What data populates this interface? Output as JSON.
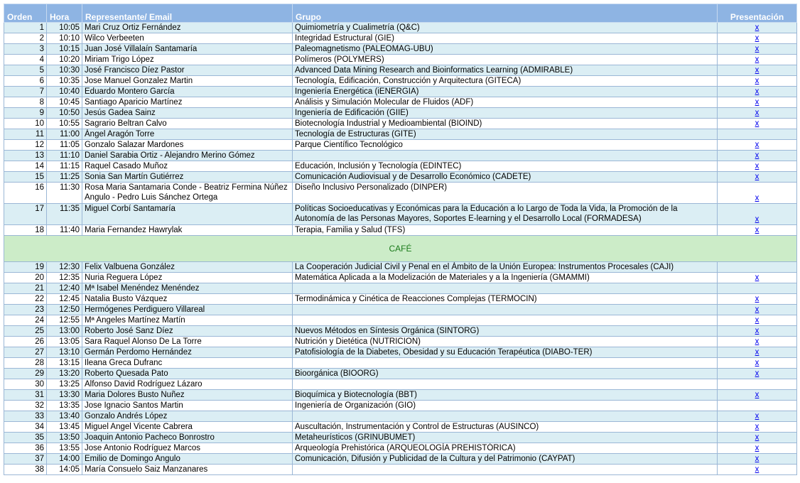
{
  "headers": {
    "orden": "Orden",
    "hora": "Hora",
    "representante": "Representante/ Email",
    "grupo": "Grupo",
    "presentacion": "Presentación"
  },
  "break_label": "CAFÉ",
  "link_text": "x",
  "rows_before": [
    {
      "n": "1",
      "h": "10:05",
      "r": "Mari Cruz Ortiz Fernández",
      "g": "Quimiometría y Cualimetría (Q&C)",
      "p": true
    },
    {
      "n": "2",
      "h": "10:10",
      "r": "Wilco Verbeeten",
      "g": "Integridad Estructural (GIE)",
      "p": true
    },
    {
      "n": "3",
      "h": "10:15",
      "r": "Juan José Villalaín Santamaría",
      "g": "Paleomagnetismo (PALEOMAG-UBU)",
      "p": true
    },
    {
      "n": "4",
      "h": "10:20",
      "r": "Miriam Trigo López",
      "g": "Polímeros (POLYMERS)",
      "p": true
    },
    {
      "n": "5",
      "h": "10:30",
      "r": "José Francisco Díez Pastor",
      "g": "Advanced Data Mining Research and Bioinformatics Learning (ADMIRABLE)",
      "p": true
    },
    {
      "n": "6",
      "h": "10:35",
      "r": "Jose Manuel Gonzalez Martin",
      "g": "Tecnología, Edificación, Construcción y Arquitectura (GITECA)",
      "p": true
    },
    {
      "n": "7",
      "h": "10:40",
      "r": "Eduardo Montero García",
      "g": "Ingeniería Energética (iENERGIA)",
      "p": true
    },
    {
      "n": "8",
      "h": "10:45",
      "r": "Santiago Aparicio Martínez",
      "g": "Análisis y Simulación Molecular de Fluidos (ADF)",
      "p": true
    },
    {
      "n": "9",
      "h": "10:50",
      "r": "Jesús Gadea Sainz",
      "g": "Ingeniería de Edificación (GIIE)",
      "p": true
    },
    {
      "n": "10",
      "h": "10:55",
      "r": "Sagrario Beltran Calvo",
      "g": "Biotecnología Industrial y Medioambiental (BIOIND)",
      "p": true
    },
    {
      "n": "11",
      "h": "11:00",
      "r": "Ángel Aragón Torre",
      "g": "Tecnología de Estructuras (GITE)",
      "p": false
    },
    {
      "n": "12",
      "h": "11:05",
      "r": "Gonzalo Salazar Mardones",
      "g": "Parque Científico Tecnológico",
      "p": true
    },
    {
      "n": "13",
      "h": "11:10",
      "r": "Daniel Sarabia Ortiz - Alejandro Merino Gómez",
      "g": "",
      "p": true
    },
    {
      "n": "14",
      "h": "11:15",
      "r": "Raquel Casado Muñoz",
      "g": "Educación, Inclusión y Tecnología (EDINTEC)",
      "p": true
    },
    {
      "n": "15",
      "h": "11:25",
      "r": "Sonia San Martín Gutiérrez",
      "g": "Comunicación Audiovisual y de Desarrollo Económico (CADETE)",
      "p": true
    },
    {
      "n": "16",
      "h": "11:30",
      "r": "Rosa Maria Santamaria Conde - Beatriz Fermina Núñez Angulo - Pedro Luis Sánchez Ortega",
      "g": "Diseño Inclusivo Personalizado (DINPER)",
      "p": true,
      "tall": true
    },
    {
      "n": "17",
      "h": "11:35",
      "r": "Miguel Corbí Santamaría",
      "g": "Políticas Socioeducativas y Económicas para la Educación a lo Largo de Toda la Vida, la Promoción de la Autonomía de las Personas Mayores, Soportes E-learning y el Desarrollo Local (FORMADESA)",
      "p": true,
      "tall": true
    },
    {
      "n": "18",
      "h": "11:40",
      "r": "Maria Fernandez Hawrylak",
      "g": "Terapia, Familia y Salud (TFS)",
      "p": true
    }
  ],
  "rows_after": [
    {
      "n": "19",
      "h": "12:30",
      "r": "Felix Valbuena González",
      "g": "La Cooperación Judicial Civil y Penal en el Ámbito de la Unión Europea: Instrumentos Procesales (CAJI)",
      "p": false
    },
    {
      "n": "20",
      "h": "12:35",
      "r": "Nuria Reguera López",
      "g": "Matemática Aplicada a la Modelización de Materiales y a la Ingeniería (GMAMMI)",
      "p": true
    },
    {
      "n": "21",
      "h": "12:40",
      "r": "Mª Isabel Menéndez Menéndez",
      "g": "",
      "p": false
    },
    {
      "n": "22",
      "h": "12:45",
      "r": "Natalia Busto Vázquez",
      "g": "Termodinámica y Cinética de Reacciones Complejas (TERMOCIN)",
      "p": true
    },
    {
      "n": "23",
      "h": "12:50",
      "r": "Hermógenes Perdiguero Villareal",
      "g": "",
      "p": true
    },
    {
      "n": "24",
      "h": "12:55",
      "r": "Mª Angeles Martínez Martín",
      "g": "",
      "p": true
    },
    {
      "n": "25",
      "h": "13:00",
      "r": "Roberto José Sanz Díez",
      "g": "Nuevos Métodos en Síntesis Orgánica (SINTORG)",
      "p": true
    },
    {
      "n": "26",
      "h": "13:05",
      "r": "Sara Raquel Alonso De La Torre",
      "g": "Nutrición y Dietética (NUTRICION)",
      "p": true
    },
    {
      "n": "27",
      "h": "13:10",
      "r": "Germán Perdomo Hernández",
      "g": "Patofisiología de la Diabetes, Obesidad y su Educación Terapéutica (DIABO-TER)",
      "p": true
    },
    {
      "n": "28",
      "h": "13:15",
      "r": "Ileana Greca Dufranc",
      "g": "",
      "p": true
    },
    {
      "n": "29",
      "h": "13:20",
      "r": "Roberto Quesada Pato",
      "g": "Bioorgánica (BIOORG)",
      "p": true
    },
    {
      "n": "30",
      "h": "13:25",
      "r": "Alfonso David Rodríguez Lázaro",
      "g": "",
      "p": false
    },
    {
      "n": "31",
      "h": "13:30",
      "r": "Maria Dolores Busto Nuñez",
      "g": "Bioquímica y Biotecnología (BBT)",
      "p": true
    },
    {
      "n": "32",
      "h": "13:35",
      "r": "Jose Ignacio Santos Martin",
      "g": "Ingeniería de Organización (GIO)",
      "p": false
    },
    {
      "n": "33",
      "h": "13:40",
      "r": "Gonzalo Andrés López",
      "g": "",
      "p": true
    },
    {
      "n": "34",
      "h": "13:45",
      "r": "Miguel Angel Vicente Cabrera",
      "g": "Auscultación, Instrumentación y Control de Estructuras (AUSINCO)",
      "p": true
    },
    {
      "n": "35",
      "h": "13:50",
      "r": "Joaquin Antonio Pacheco Bonrostro",
      "g": "Metaheurísticos (GRINUBUMET)",
      "p": true
    },
    {
      "n": "36",
      "h": "13:55",
      "r": "Jose Antonio Rodríguez Marcos",
      "g": "Arqueología Prehistórica (ARQUEOLOGÍA PREHISTÓRICA)",
      "p": true
    },
    {
      "n": "37",
      "h": "14:00",
      "r": "Emilio de Domingo Angulo",
      "g": "Comunicación, Difusión y Publicidad de la Cultura y del Patrimonio (CAYPAT)",
      "p": true
    },
    {
      "n": "38",
      "h": "14:05",
      "r": "María Consuelo Saiz Manzanares",
      "g": "",
      "p": true
    }
  ]
}
